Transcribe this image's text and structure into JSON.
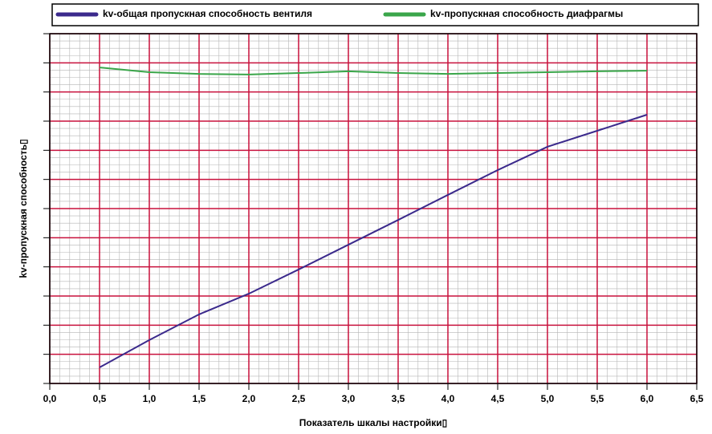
{
  "chart_data": {
    "type": "line",
    "xlabel": "Показатель шкалы настройки▯",
    "ylabel": "kv-пропускная способность▯",
    "x": [
      0.5,
      1.0,
      1.5,
      2.0,
      2.5,
      3.0,
      3.5,
      4.0,
      4.5,
      5.0,
      5.5,
      6.0
    ],
    "series": [
      {
        "name": "kv-общая пропускная способность вентиля",
        "color": "#3b2a8c",
        "values": [
          0.55,
          1.49,
          2.37,
          3.08,
          3.91,
          4.76,
          5.61,
          6.47,
          7.32,
          8.12,
          8.67,
          9.22
        ]
      },
      {
        "name": "kv-пропускная способность диафрагмы",
        "color": "#3aa64a",
        "values": [
          10.84,
          10.68,
          10.62,
          10.6,
          10.65,
          10.71,
          10.65,
          10.62,
          10.65,
          10.68,
          10.71,
          10.73
        ]
      }
    ],
    "xlim": [
      0,
      6.5
    ],
    "xticks": [
      {
        "value": 0,
        "label": "0,0"
      },
      {
        "value": 0.5,
        "label": "0,5"
      },
      {
        "value": 1,
        "label": "1,0"
      },
      {
        "value": 1.5,
        "label": "1,5"
      },
      {
        "value": 2,
        "label": "2,0"
      },
      {
        "value": 2.5,
        "label": "2,5"
      },
      {
        "value": 3,
        "label": "3,0"
      },
      {
        "value": 3.5,
        "label": "3,5"
      },
      {
        "value": 4,
        "label": "4,0"
      },
      {
        "value": 4.5,
        "label": "4,5"
      },
      {
        "value": 5,
        "label": "5,0"
      },
      {
        "value": 5.5,
        "label": "5,5"
      },
      {
        "value": 6,
        "label": "6,0"
      },
      {
        "value": 6.5,
        "label": "6,5"
      }
    ],
    "ylim": [
      0,
      12
    ],
    "yticks": [
      0,
      1,
      2,
      3,
      4,
      5,
      6,
      7,
      8,
      9,
      10,
      11,
      12
    ],
    "grid": true,
    "grid_color": "#c8103c",
    "legend": "top"
  }
}
